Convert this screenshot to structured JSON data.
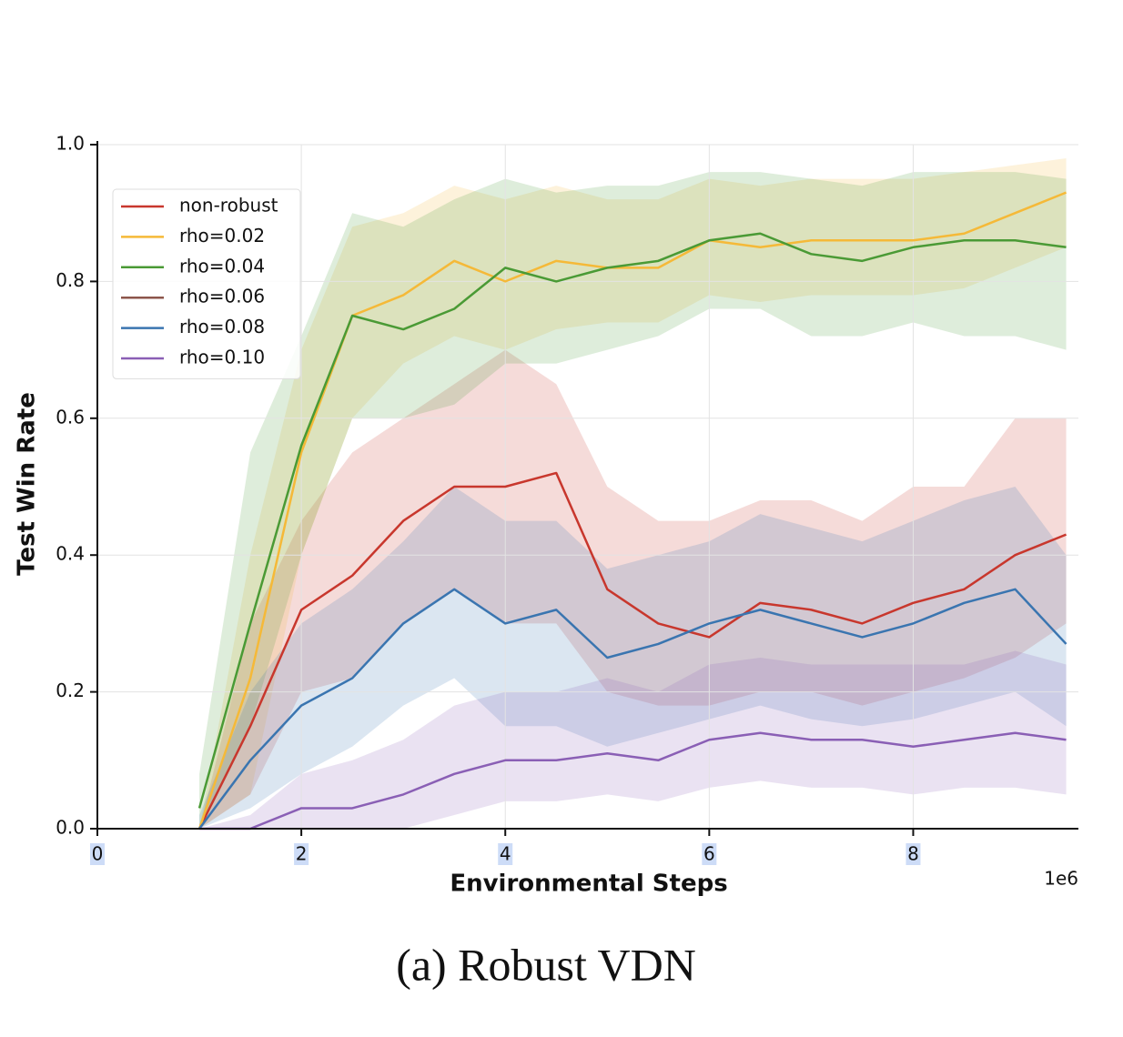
{
  "chart_data": {
    "type": "line",
    "xlabel": "Environmental Steps",
    "ylabel": "Test Win Rate",
    "x_offset_label": "1e6",
    "caption": "(a) Robust VDN",
    "x": [
      0.5,
      1.0,
      1.5,
      2.0,
      2.5,
      3.0,
      3.5,
      4.0,
      4.5,
      5.0,
      5.5,
      6.0,
      6.5,
      7.0,
      7.5,
      8.0,
      8.5,
      9.0,
      9.5
    ],
    "xlim": [
      0,
      9.62
    ],
    "xticks": [
      0,
      2,
      4,
      6,
      8
    ],
    "ylim": [
      0,
      1
    ],
    "yticks": [
      {
        "value": 0,
        "label": "0.0"
      },
      0.2,
      0.4,
      0.6,
      0.8,
      {
        "value": 1,
        "label": "1.0"
      }
    ],
    "grid": true,
    "legend": "upper left",
    "series": [
      {
        "name": "non-robust",
        "color": "#c8372d",
        "values": [
          null,
          0.0,
          0.15,
          0.32,
          0.37,
          0.45,
          0.5,
          0.5,
          0.52,
          0.35,
          0.3,
          0.28,
          0.33,
          0.32,
          0.3,
          0.33,
          0.35,
          0.4,
          0.43
        ],
        "lower": [
          null,
          0.0,
          0.05,
          0.2,
          0.22,
          0.3,
          0.35,
          0.3,
          0.3,
          0.2,
          0.18,
          0.18,
          0.2,
          0.2,
          0.18,
          0.2,
          0.22,
          0.25,
          0.3
        ],
        "upper": [
          null,
          0.0,
          0.3,
          0.45,
          0.55,
          0.6,
          0.65,
          0.7,
          0.65,
          0.5,
          0.45,
          0.45,
          0.48,
          0.48,
          0.45,
          0.5,
          0.5,
          0.6,
          0.6
        ]
      },
      {
        "name": "rho=0.02",
        "color": "#f5b938",
        "values": [
          null,
          0.0,
          0.22,
          0.55,
          0.75,
          0.78,
          0.83,
          0.8,
          0.83,
          0.82,
          0.82,
          0.86,
          0.85,
          0.86,
          0.86,
          0.86,
          0.87,
          0.9,
          0.93
        ],
        "lower": [
          null,
          0.0,
          0.05,
          0.4,
          0.6,
          0.68,
          0.72,
          0.7,
          0.73,
          0.74,
          0.74,
          0.78,
          0.77,
          0.78,
          0.78,
          0.78,
          0.79,
          0.82,
          0.85
        ],
        "upper": [
          null,
          0.0,
          0.4,
          0.7,
          0.88,
          0.9,
          0.94,
          0.92,
          0.94,
          0.92,
          0.92,
          0.95,
          0.94,
          0.95,
          0.95,
          0.95,
          0.96,
          0.97,
          0.98
        ]
      },
      {
        "name": "rho=0.04",
        "color": "#4a9a35",
        "values": [
          null,
          0.03,
          0.3,
          0.56,
          0.75,
          0.73,
          0.76,
          0.82,
          0.8,
          0.82,
          0.83,
          0.86,
          0.87,
          0.84,
          0.83,
          0.85,
          0.86,
          0.86,
          0.85
        ],
        "lower": [
          null,
          0.0,
          0.15,
          0.4,
          0.6,
          0.6,
          0.62,
          0.68,
          0.68,
          0.7,
          0.72,
          0.76,
          0.76,
          0.72,
          0.72,
          0.74,
          0.72,
          0.72,
          0.7
        ],
        "upper": [
          null,
          0.08,
          0.55,
          0.72,
          0.9,
          0.88,
          0.92,
          0.95,
          0.93,
          0.94,
          0.94,
          0.96,
          0.96,
          0.95,
          0.94,
          0.96,
          0.96,
          0.96,
          0.95
        ]
      },
      {
        "name": "rho=0.06",
        "color": "#8c564b",
        "values": [
          null,
          null,
          null,
          null,
          null,
          null,
          null,
          null,
          null,
          null,
          null,
          null,
          null,
          null,
          null,
          null,
          null,
          null,
          null
        ]
      },
      {
        "name": "rho=0.08",
        "color": "#3a75b0",
        "values": [
          null,
          0.0,
          0.1,
          0.18,
          0.22,
          0.3,
          0.35,
          0.3,
          0.32,
          0.25,
          0.27,
          0.3,
          0.32,
          0.3,
          0.28,
          0.3,
          0.33,
          0.35,
          0.27
        ],
        "lower": [
          null,
          0.0,
          0.03,
          0.08,
          0.12,
          0.18,
          0.22,
          0.15,
          0.15,
          0.12,
          0.14,
          0.16,
          0.18,
          0.16,
          0.15,
          0.16,
          0.18,
          0.2,
          0.15
        ],
        "upper": [
          null,
          0.02,
          0.2,
          0.3,
          0.35,
          0.42,
          0.5,
          0.45,
          0.45,
          0.38,
          0.4,
          0.42,
          0.46,
          0.44,
          0.42,
          0.45,
          0.48,
          0.5,
          0.4
        ]
      },
      {
        "name": "rho=0.10",
        "color": "#8a5fb5",
        "values": [
          null,
          0.0,
          0.0,
          0.03,
          0.03,
          0.05,
          0.08,
          0.1,
          0.1,
          0.11,
          0.1,
          0.13,
          0.14,
          0.13,
          0.13,
          0.12,
          0.13,
          0.14,
          0.13
        ],
        "lower": [
          null,
          0.0,
          0.0,
          0.0,
          0.0,
          0.0,
          0.02,
          0.04,
          0.04,
          0.05,
          0.04,
          0.06,
          0.07,
          0.06,
          0.06,
          0.05,
          0.06,
          0.06,
          0.05
        ],
        "upper": [
          null,
          0.0,
          0.02,
          0.08,
          0.1,
          0.13,
          0.18,
          0.2,
          0.2,
          0.22,
          0.2,
          0.24,
          0.25,
          0.24,
          0.24,
          0.24,
          0.24,
          0.26,
          0.24
        ]
      }
    ]
  }
}
